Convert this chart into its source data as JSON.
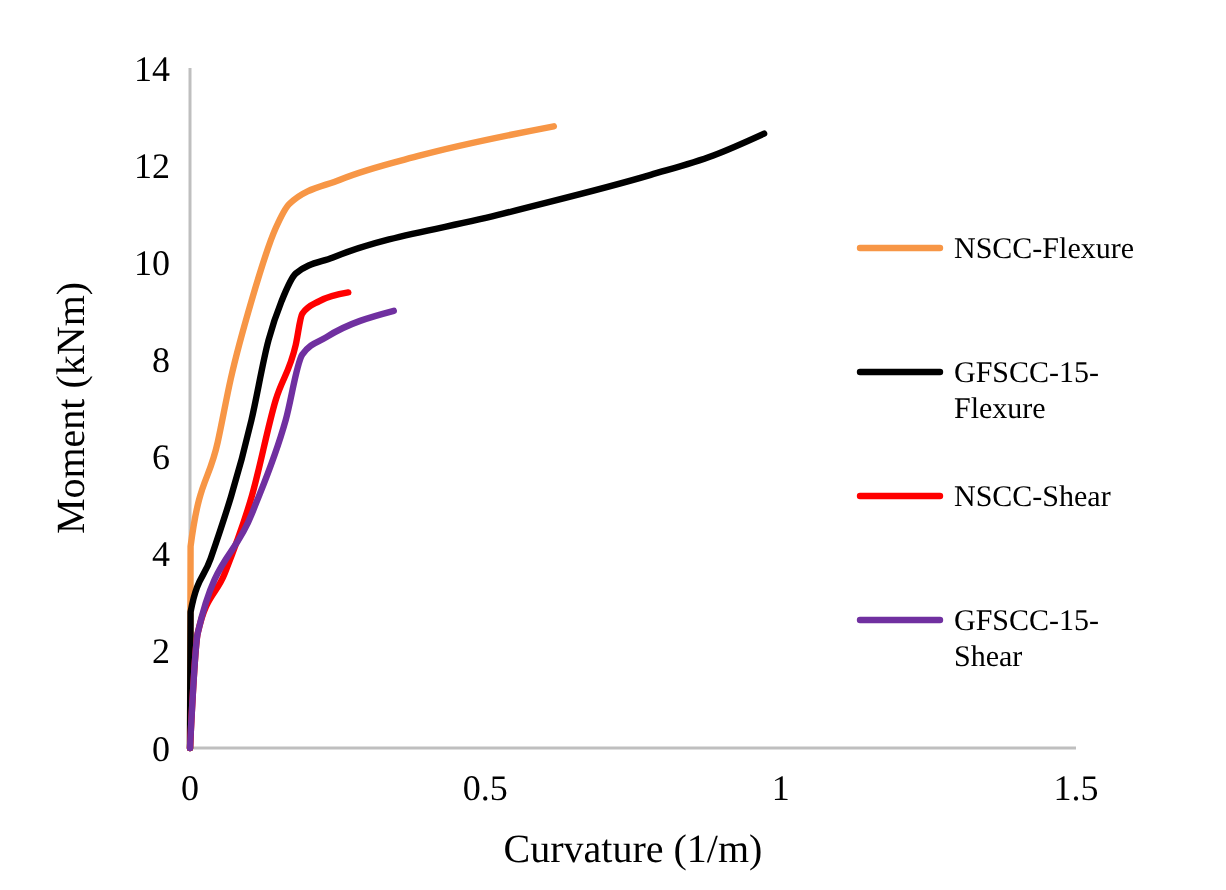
{
  "chart_data": {
    "type": "line",
    "xlabel": "Curvature (1/m)",
    "ylabel": "Moment (kNm)",
    "xlim": [
      0,
      1.5
    ],
    "xticks": [
      0,
      0.5,
      1,
      1.5
    ],
    "ylim": [
      0,
      14
    ],
    "yticks": [
      0,
      2,
      4,
      6,
      8,
      10,
      12,
      14
    ],
    "grid": false,
    "legend": "right",
    "marker": "none",
    "line_style": "solid",
    "series": [
      {
        "name": "NSCC-Flexure",
        "color": "#f79646",
        "x": [
          0,
          0.001,
          0.047,
          0.069,
          0.104,
          0.145,
          0.168,
          0.254,
          0.39,
          0.616
        ],
        "values": [
          0,
          4.15,
          6.3,
          7.6,
          9.2,
          10.7,
          11.2,
          11.7,
          12.2,
          12.8
        ]
      },
      {
        "name": "GFSCC-15-Flexure",
        "color": "#000000",
        "x": [
          0,
          0.001,
          0.035,
          0.104,
          0.133,
          0.155,
          0.179,
          0.242,
          0.53,
          0.78,
          0.886,
          0.972
        ],
        "values": [
          0,
          2.8,
          3.9,
          6.75,
          8.4,
          9.2,
          9.77,
          10.1,
          11.0,
          11.8,
          12.2,
          12.65
        ]
      },
      {
        "name": "NSCC-Shear",
        "color": "#ff0000",
        "x": [
          0,
          0.013,
          0.059,
          0.105,
          0.145,
          0.179,
          0.19,
          0.219,
          0.268
        ],
        "values": [
          0,
          2.36,
          3.6,
          5.2,
          7.16,
          8.3,
          8.94,
          9.2,
          9.38
        ]
      },
      {
        "name": "GFSCC-15-Shear",
        "color": "#7030a0",
        "x": [
          0,
          0.013,
          0.105,
          0.162,
          0.19,
          0.231,
          0.345
        ],
        "values": [
          0,
          2.36,
          4.83,
          6.75,
          8.1,
          8.46,
          9.0
        ]
      }
    ]
  }
}
